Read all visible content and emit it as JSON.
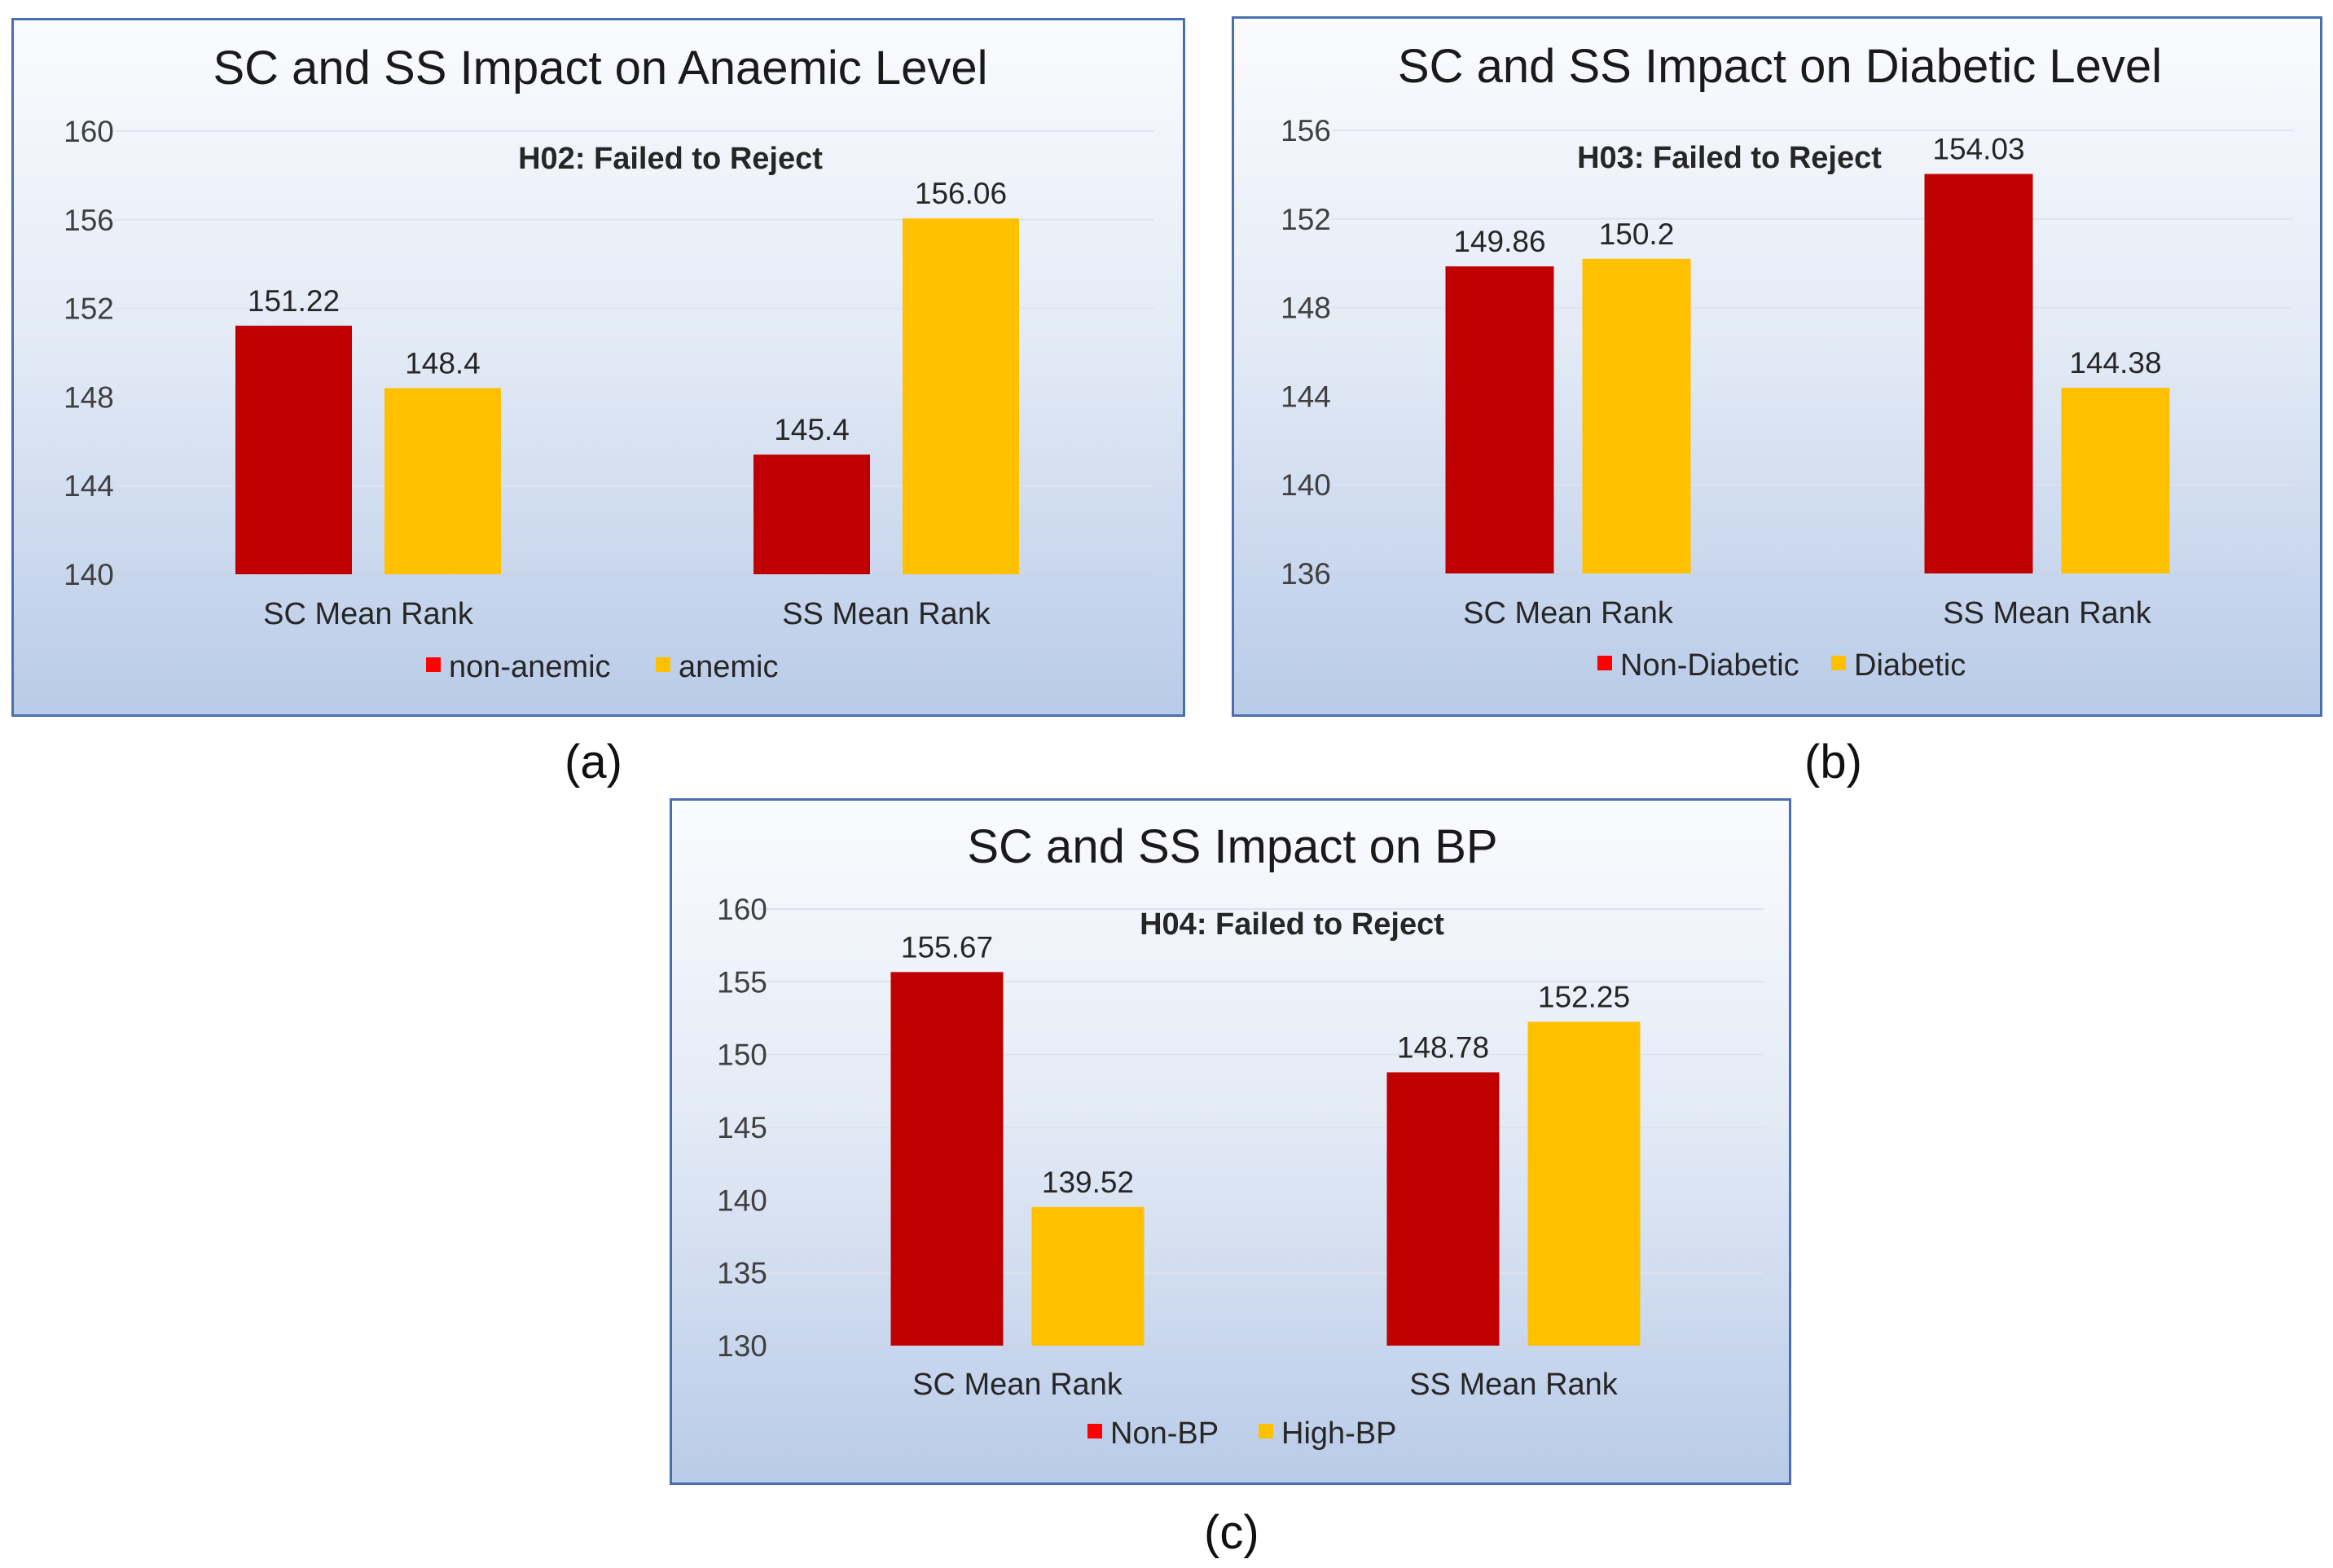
{
  "captions": [
    "(a)",
    "(b)",
    "(c)"
  ],
  "chart_data": [
    {
      "type": "bar",
      "title": "SC and SS Impact on Anaemic Level",
      "annotation": "H02: Failed to Reject",
      "categories": [
        "SC Mean Rank",
        "SS Mean Rank"
      ],
      "series": [
        {
          "name": "non-anemic",
          "values": [
            151.22,
            145.4
          ],
          "labels": [
            "151.22",
            "145.4"
          ],
          "color": "#c00000"
        },
        {
          "name": "anemic",
          "values": [
            148.4,
            156.06
          ],
          "labels": [
            "148.4",
            "156.06"
          ],
          "color": "#ffc000"
        }
      ],
      "ylim": [
        140,
        160
      ],
      "yticks": [
        140,
        144,
        148,
        152,
        156,
        160
      ],
      "xlabel": "",
      "ylabel": "",
      "legend": "bottom",
      "legend_marker_color": "#ff0000"
    },
    {
      "type": "bar",
      "title": "SC and SS Impact on Diabetic Level",
      "annotation": "H03: Failed to Reject",
      "categories": [
        "SC Mean Rank",
        "SS Mean Rank"
      ],
      "series": [
        {
          "name": "Non-Diabetic",
          "values": [
            149.86,
            154.03
          ],
          "labels": [
            "149.86",
            "154.03"
          ],
          "color": "#c00000"
        },
        {
          "name": "Diabetic",
          "values": [
            150.2,
            144.38
          ],
          "labels": [
            "150.2",
            "144.38"
          ],
          "color": "#ffc000"
        }
      ],
      "ylim": [
        136,
        156
      ],
      "yticks": [
        136,
        140,
        144,
        148,
        152,
        156
      ],
      "xlabel": "",
      "ylabel": "",
      "legend": "bottom",
      "legend_marker_color": "#ff0000"
    },
    {
      "type": "bar",
      "title": "SC and SS Impact on BP",
      "annotation": "H04: Failed to Reject",
      "categories": [
        "SC Mean Rank",
        "SS Mean Rank"
      ],
      "series": [
        {
          "name": "Non-BP",
          "values": [
            155.67,
            148.78
          ],
          "labels": [
            "155.67",
            "148.78"
          ],
          "color": "#c00000"
        },
        {
          "name": "High-BP",
          "values": [
            139.52,
            152.25
          ],
          "labels": [
            "139.52",
            "152.25"
          ],
          "color": "#ffc000"
        }
      ],
      "ylim": [
        130,
        160
      ],
      "yticks": [
        130,
        135,
        140,
        145,
        150,
        155,
        160
      ],
      "xlabel": "",
      "ylabel": "",
      "legend": "bottom",
      "legend_marker_color": "#ff0000"
    }
  ]
}
